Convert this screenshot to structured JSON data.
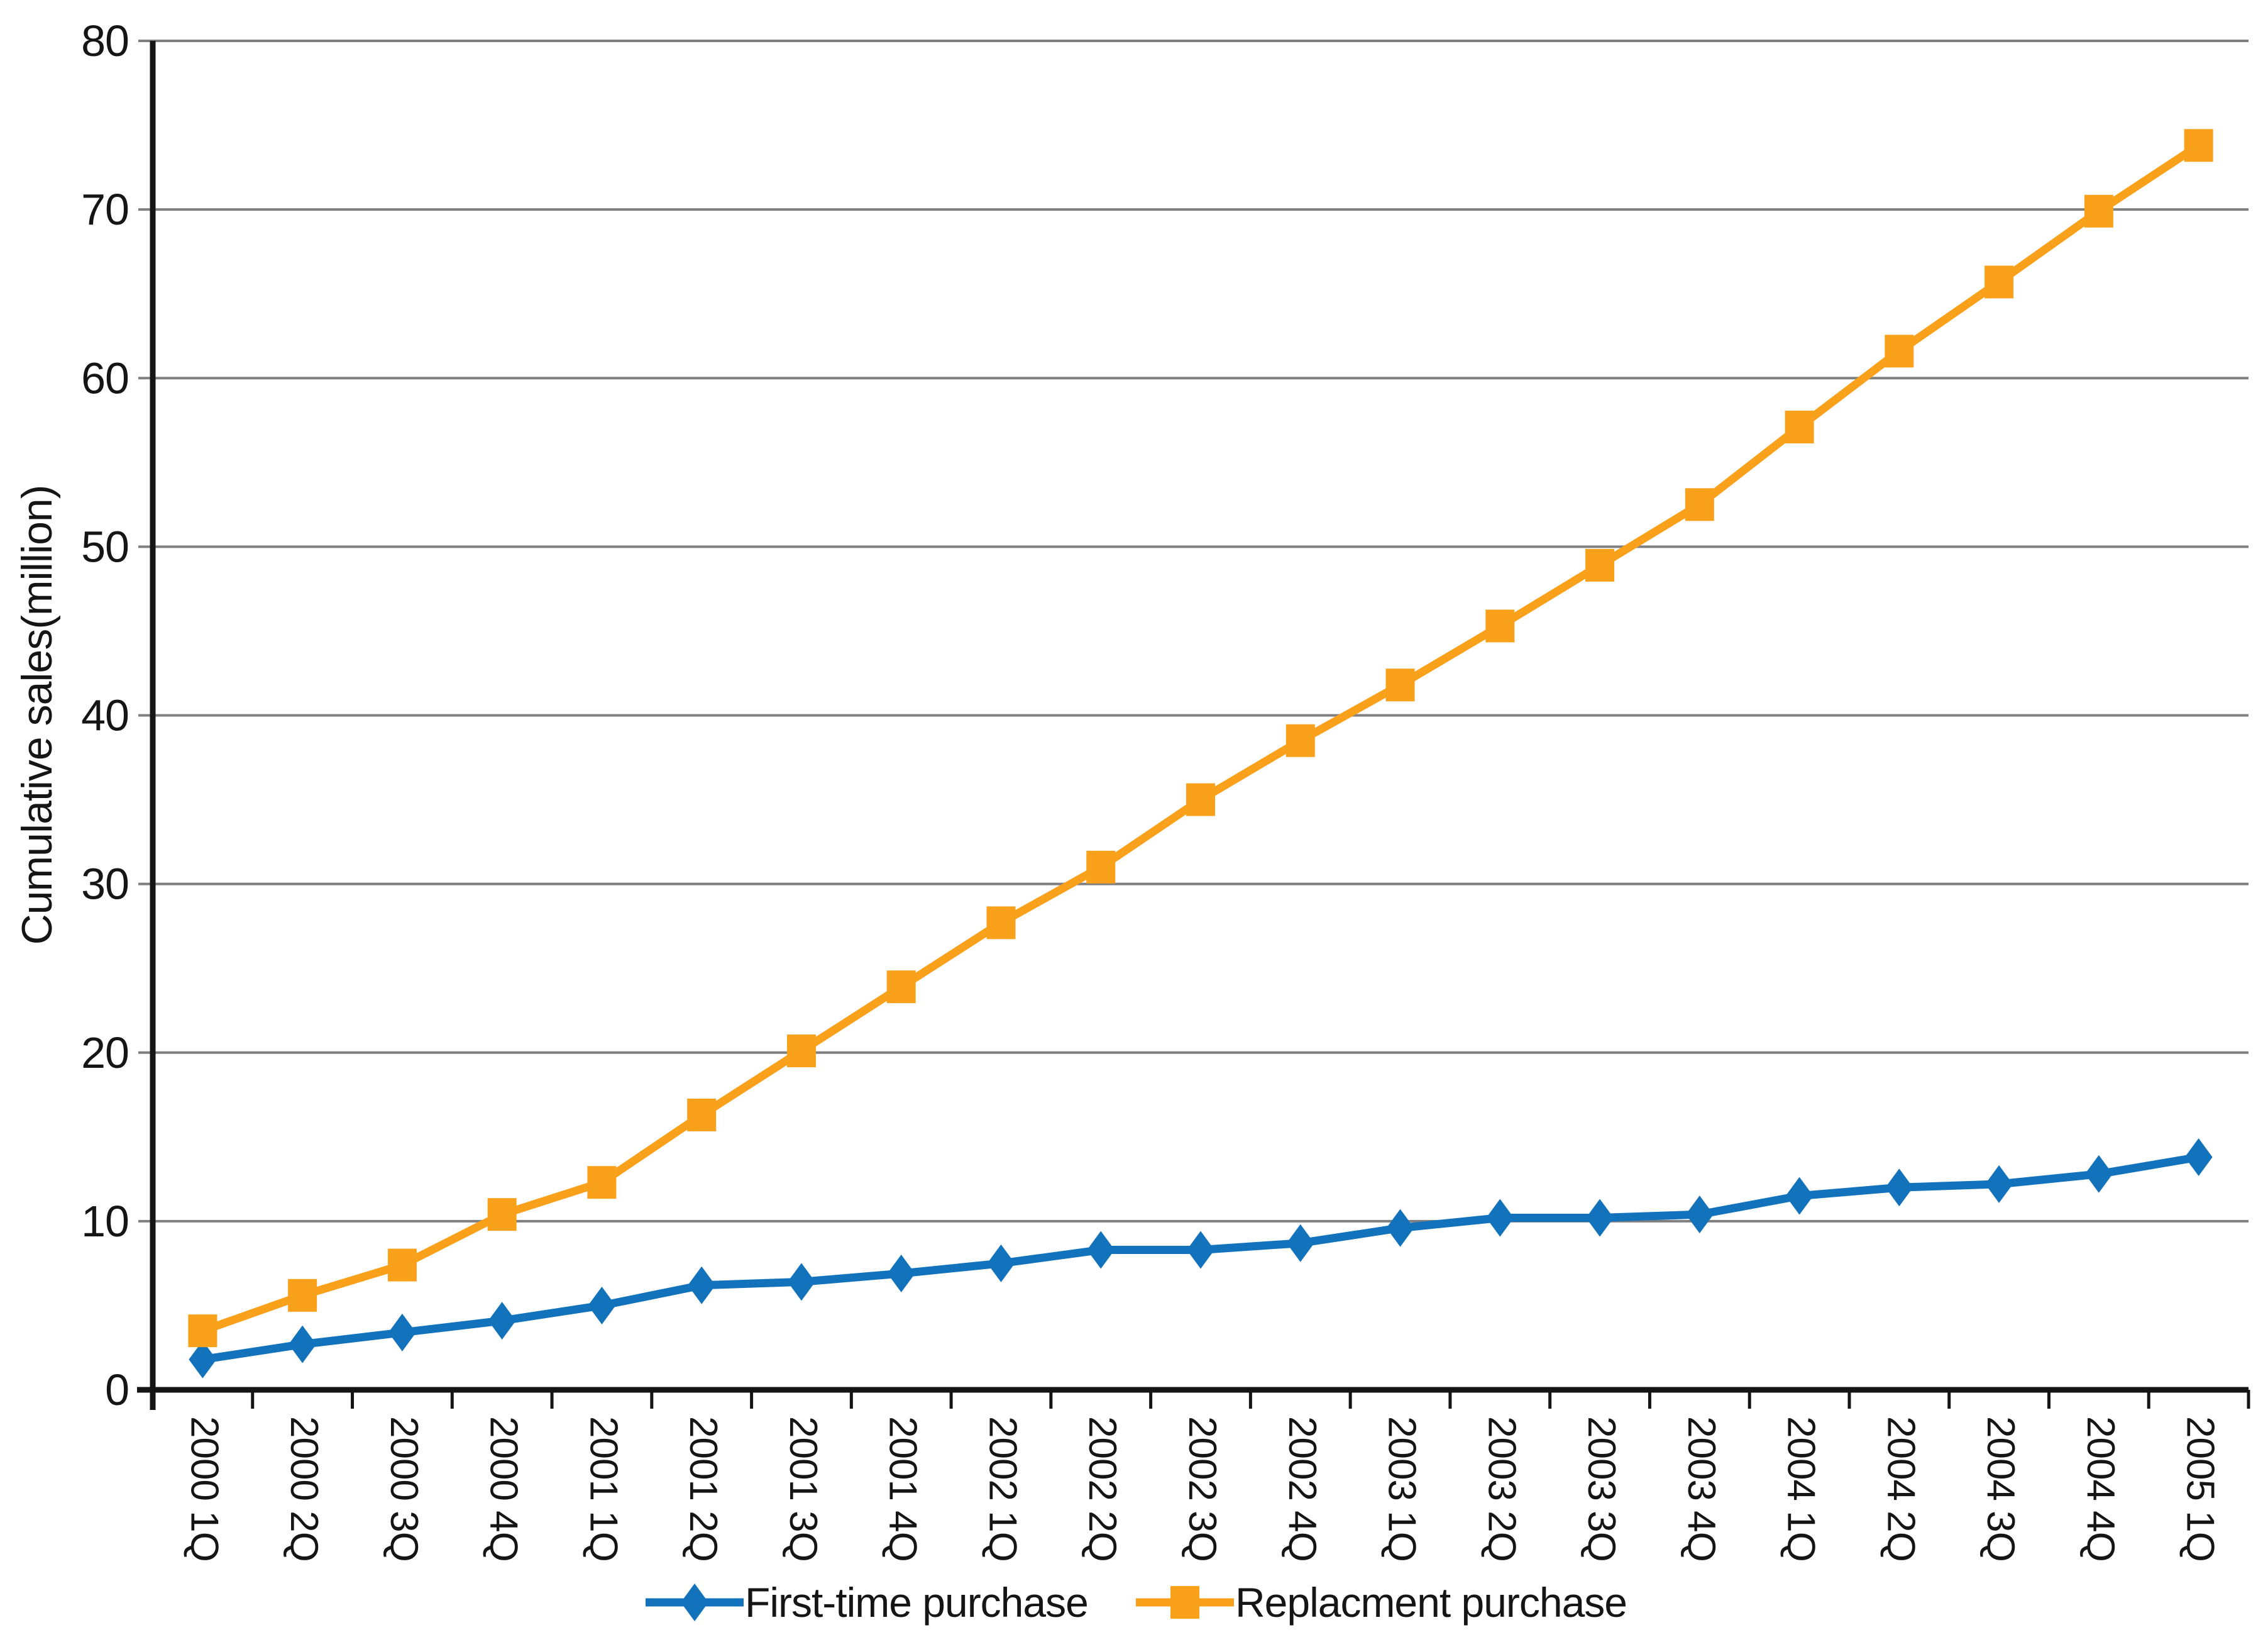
{
  "page": {
    "background": "#ffffff"
  },
  "chart_data": {
    "type": "line",
    "title": "",
    "xlabel": "",
    "ylabel": "Cumulative sales(million)",
    "ylim": [
      0,
      80
    ],
    "ytick_step": 10,
    "ytick_labels": [
      "0",
      "10",
      "20",
      "30",
      "40",
      "50",
      "60",
      "70",
      "80"
    ],
    "grid": "horizontal",
    "grid_color": "#7f7f7f",
    "axis_color": "#151515",
    "legend_position": "bottom",
    "categories": [
      "2000 1Q",
      "2000 2Q",
      "2000 3Q",
      "2000 4Q",
      "2001 1Q",
      "2001 2Q",
      "2001 3Q",
      "2001 4Q",
      "2002 1Q",
      "2002 2Q",
      "2002 3Q",
      "2002 4Q",
      "2003 1Q",
      "2003 2Q",
      "2003 3Q",
      "2003 4Q",
      "2004 1Q",
      "2004 2Q",
      "2004 3Q",
      "2004 4Q",
      "2005 1Q"
    ],
    "series": [
      {
        "name": "First-time purchase",
        "marker": "diamond",
        "color": "#1273bc",
        "values": [
          1.8,
          2.7,
          3.4,
          4.1,
          5.0,
          6.2,
          6.4,
          6.9,
          7.5,
          8.3,
          8.3,
          8.7,
          9.6,
          10.2,
          10.2,
          10.4,
          11.5,
          12.0,
          12.2,
          12.8,
          13.8
        ]
      },
      {
        "name": "Replacment purchase",
        "marker": "square",
        "color": "#f9a11b",
        "values": [
          3.5,
          5.6,
          7.4,
          10.4,
          12.3,
          16.3,
          20.1,
          23.9,
          27.7,
          31.0,
          35.0,
          38.5,
          41.8,
          45.3,
          48.9,
          52.5,
          57.1,
          61.6,
          65.7,
          69.9,
          73.8
        ]
      }
    ]
  }
}
